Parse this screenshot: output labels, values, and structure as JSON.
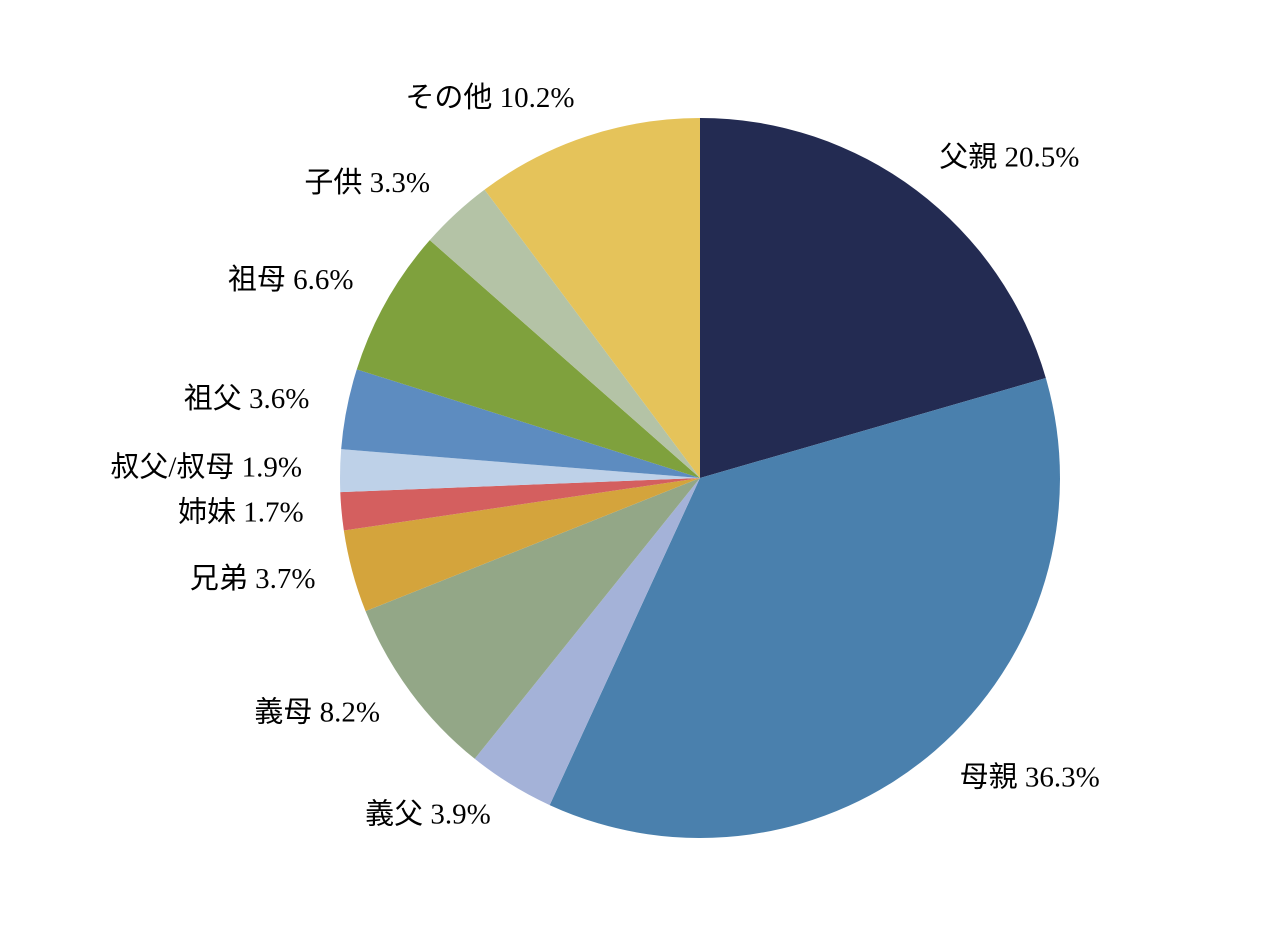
{
  "chart_data": {
    "type": "pie",
    "title": "",
    "start_angle_deg": 0,
    "direction": "clockwise",
    "background": "#ffffff",
    "label_format": "name value%",
    "slices": [
      {
        "label": "父親",
        "value": 20.5,
        "color": "#232b52"
      },
      {
        "label": "母親",
        "value": 36.3,
        "color": "#4a80ad"
      },
      {
        "label": "義父",
        "value": 3.9,
        "color": "#a4b2d8"
      },
      {
        "label": "義母",
        "value": 8.2,
        "color": "#93a787"
      },
      {
        "label": "兄弟",
        "value": 3.7,
        "color": "#d4a43c"
      },
      {
        "label": "姉妹",
        "value": 1.7,
        "color": "#d45f5f"
      },
      {
        "label": "叔父/叔母",
        "value": 1.9,
        "color": "#bed1e8"
      },
      {
        "label": "祖父",
        "value": 3.6,
        "color": "#5d8cc0"
      },
      {
        "label": "祖母",
        "value": 6.6,
        "color": "#7fa13d"
      },
      {
        "label": "子供",
        "value": 3.3,
        "color": "#b4c3a6"
      },
      {
        "label": "その他",
        "value": 10.2,
        "color": "#e5c35a"
      }
    ]
  }
}
